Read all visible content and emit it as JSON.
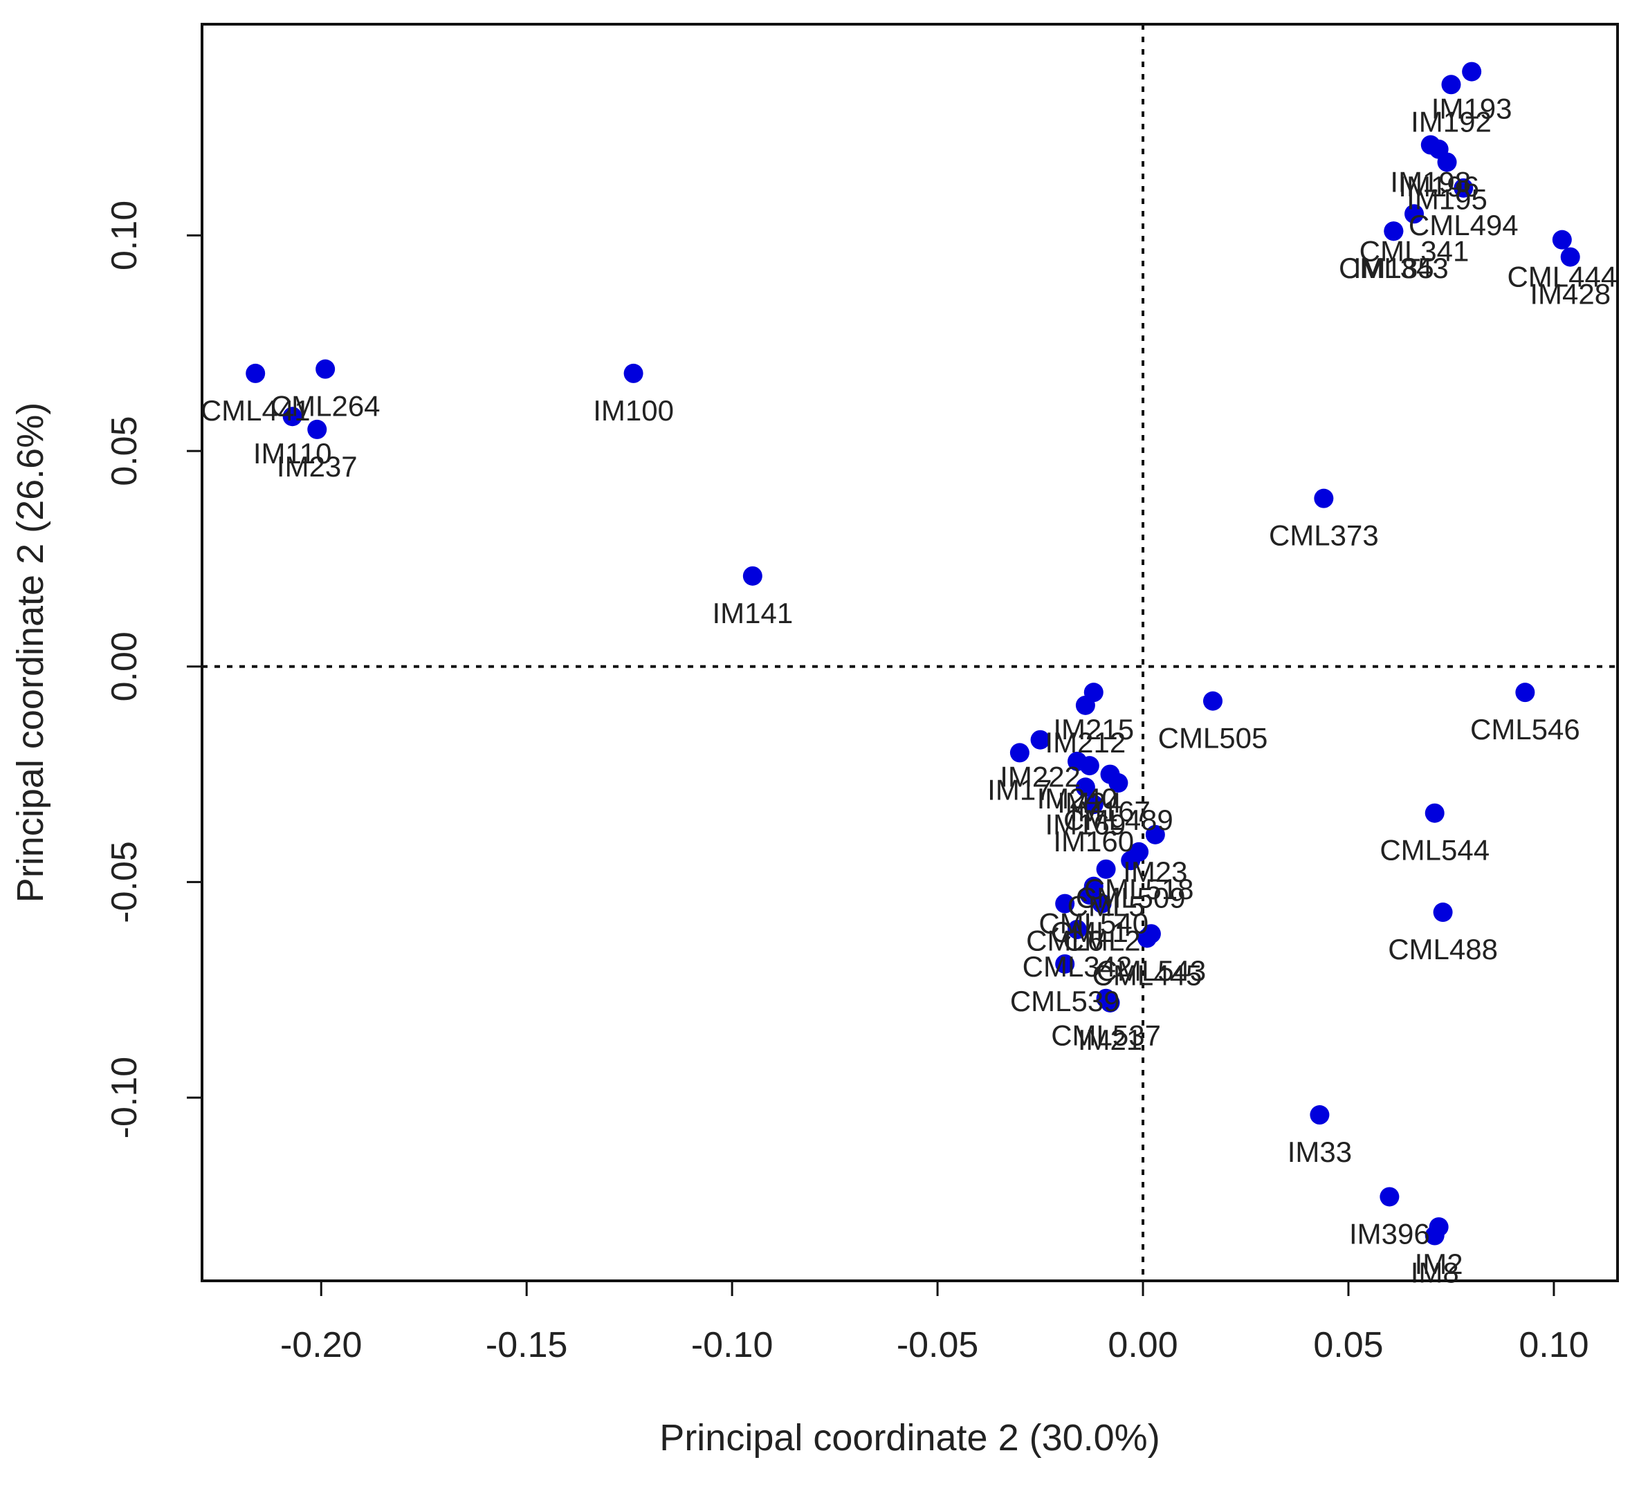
{
  "chart_data": {
    "type": "scatter",
    "title": "",
    "xlabel": "Principal coordinate 2 (30.0%)",
    "ylabel": "Principal coordinate 2 (26.6%)",
    "xlim": [
      -0.229,
      0.1155
    ],
    "ylim": [
      -0.1425,
      0.149
    ],
    "xticks": [
      -0.2,
      -0.15,
      -0.1,
      -0.05,
      0.0,
      0.05,
      0.1
    ],
    "xtick_labels": [
      "-0.20",
      "-0.15",
      "-0.10",
      "-0.05",
      "0.00",
      "0.05",
      "0.10"
    ],
    "yticks": [
      -0.1,
      -0.05,
      0.0,
      0.05,
      0.1
    ],
    "ytick_labels": [
      "-0.10",
      "-0.05",
      "0.00",
      "0.05",
      "0.10"
    ],
    "reference_lines": {
      "x": 0,
      "y": 0,
      "style": "dotted"
    },
    "grid": false,
    "marker_color": "#0000dd",
    "points": [
      {
        "x": 0.08,
        "y": 0.138,
        "label": "IM193"
      },
      {
        "x": 0.075,
        "y": 0.135,
        "label": "IM192"
      },
      {
        "x": 0.07,
        "y": 0.121,
        "label": "IM198"
      },
      {
        "x": 0.072,
        "y": 0.12,
        "label": "IM196"
      },
      {
        "x": 0.074,
        "y": 0.117,
        "label": "IM195"
      },
      {
        "x": 0.078,
        "y": 0.111,
        "label": "CML494"
      },
      {
        "x": 0.066,
        "y": 0.105,
        "label": "CML341"
      },
      {
        "x": 0.061,
        "y": 0.101,
        "label": "CML343"
      },
      {
        "x": 0.061,
        "y": 0.101,
        "label": "IM185"
      },
      {
        "x": 0.102,
        "y": 0.099,
        "label": "CML444"
      },
      {
        "x": 0.104,
        "y": 0.095,
        "label": "IM428"
      },
      {
        "x": -0.216,
        "y": 0.068,
        "label": "CML441"
      },
      {
        "x": -0.199,
        "y": 0.069,
        "label": "CML264"
      },
      {
        "x": -0.207,
        "y": 0.058,
        "label": "IM110"
      },
      {
        "x": -0.201,
        "y": 0.055,
        "label": "IM237"
      },
      {
        "x": -0.124,
        "y": 0.068,
        "label": "IM100"
      },
      {
        "x": 0.044,
        "y": 0.039,
        "label": "CML373"
      },
      {
        "x": -0.095,
        "y": 0.021,
        "label": "IM141"
      },
      {
        "x": 0.017,
        "y": -0.008,
        "label": "CML505"
      },
      {
        "x": 0.093,
        "y": -0.006,
        "label": "CML546"
      },
      {
        "x": -0.012,
        "y": -0.006,
        "label": "IM215"
      },
      {
        "x": -0.014,
        "y": -0.009,
        "label": "IM212"
      },
      {
        "x": -0.025,
        "y": -0.017,
        "label": "IM222"
      },
      {
        "x": -0.03,
        "y": -0.02,
        "label": "IM17"
      },
      {
        "x": -0.016,
        "y": -0.022,
        "label": "IM240"
      },
      {
        "x": -0.013,
        "y": -0.023,
        "label": "IM24"
      },
      {
        "x": -0.008,
        "y": -0.025,
        "label": "IM167"
      },
      {
        "x": -0.006,
        "y": -0.027,
        "label": "CML489"
      },
      {
        "x": -0.014,
        "y": -0.028,
        "label": "IM169"
      },
      {
        "x": -0.012,
        "y": -0.032,
        "label": "IM160"
      },
      {
        "x": 0.071,
        "y": -0.034,
        "label": "CML544"
      },
      {
        "x": 0.073,
        "y": -0.057,
        "label": "CML488"
      },
      {
        "x": 0.003,
        "y": -0.039,
        "label": "IM23"
      },
      {
        "x": -0.001,
        "y": -0.043,
        "label": "CML518"
      },
      {
        "x": -0.003,
        "y": -0.045,
        "label": "CML509"
      },
      {
        "x": -0.009,
        "y": -0.047,
        "label": "CML5"
      },
      {
        "x": -0.012,
        "y": -0.051,
        "label": "CML540"
      },
      {
        "x": -0.013,
        "y": -0.053,
        "label": "CML1"
      },
      {
        "x": -0.01,
        "y": -0.055,
        "label": "CML2"
      },
      {
        "x": -0.019,
        "y": -0.055,
        "label": "CML6"
      },
      {
        "x": -0.016,
        "y": -0.061,
        "label": "CML342"
      },
      {
        "x": 0.002,
        "y": -0.062,
        "label": "CML543"
      },
      {
        "x": 0.001,
        "y": -0.063,
        "label": "CML445"
      },
      {
        "x": -0.019,
        "y": -0.069,
        "label": "CML539"
      },
      {
        "x": -0.009,
        "y": -0.077,
        "label": "CML537"
      },
      {
        "x": -0.008,
        "y": -0.078,
        "label": "IM21"
      },
      {
        "x": 0.043,
        "y": -0.104,
        "label": "IM33"
      },
      {
        "x": 0.06,
        "y": -0.123,
        "label": "IM396"
      },
      {
        "x": 0.072,
        "y": -0.13,
        "label": "IM2"
      },
      {
        "x": 0.071,
        "y": -0.132,
        "label": "IM8"
      }
    ]
  }
}
